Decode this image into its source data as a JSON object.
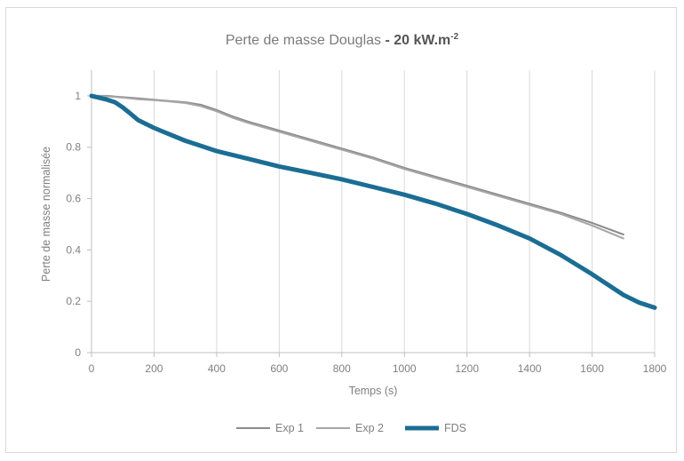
{
  "chart_data": {
    "type": "line",
    "title_main": "Perte de masse Douglas",
    "title_sep": " - ",
    "title_bold": "20 kW.m",
    "title_sup": "-2",
    "xlabel": "Temps (s)",
    "ylabel": "Perte de masse normalisée",
    "xlim": [
      0,
      1800
    ],
    "ylim": [
      0,
      1.1
    ],
    "xticks": [
      0,
      200,
      400,
      600,
      800,
      1000,
      1200,
      1400,
      1600,
      1800
    ],
    "yticks": [
      0,
      0.2,
      0.4,
      0.6,
      0.8,
      1
    ],
    "ytick_labels": [
      "0",
      "0.2",
      "0.4",
      "0.6",
      "0.8",
      "1"
    ],
    "grid": "vertical",
    "legend_position": "bottom",
    "series": [
      {
        "name": "Exp 1",
        "color": "#8c8c8c",
        "x": [
          0,
          50,
          100,
          150,
          200,
          250,
          300,
          350,
          400,
          450,
          500,
          600,
          700,
          800,
          900,
          1000,
          1100,
          1200,
          1300,
          1400,
          1500,
          1600,
          1700
        ],
        "y": [
          1.0,
          1.0,
          0.995,
          0.99,
          0.985,
          0.98,
          0.975,
          0.965,
          0.945,
          0.92,
          0.9,
          0.865,
          0.83,
          0.795,
          0.76,
          0.72,
          0.685,
          0.65,
          0.615,
          0.58,
          0.545,
          0.505,
          0.46
        ]
      },
      {
        "name": "Exp 2",
        "color": "#a6a6a6",
        "x": [
          0,
          50,
          100,
          150,
          200,
          250,
          300,
          350,
          400,
          450,
          500,
          600,
          700,
          800,
          900,
          1000,
          1100,
          1200,
          1300,
          1400,
          1500,
          1600,
          1700
        ],
        "y": [
          1.0,
          0.998,
          0.993,
          0.987,
          0.983,
          0.978,
          0.972,
          0.96,
          0.94,
          0.915,
          0.895,
          0.86,
          0.825,
          0.79,
          0.755,
          0.715,
          0.68,
          0.645,
          0.61,
          0.575,
          0.54,
          0.495,
          0.445
        ]
      },
      {
        "name": "FDS",
        "color": "#1b6d94",
        "x": [
          0,
          50,
          75,
          100,
          125,
          150,
          200,
          250,
          300,
          350,
          400,
          500,
          600,
          700,
          800,
          900,
          1000,
          1100,
          1200,
          1300,
          1400,
          1500,
          1600,
          1700,
          1750,
          1800
        ],
        "y": [
          1.0,
          0.985,
          0.975,
          0.955,
          0.93,
          0.905,
          0.875,
          0.85,
          0.825,
          0.805,
          0.785,
          0.755,
          0.725,
          0.7,
          0.675,
          0.645,
          0.615,
          0.58,
          0.54,
          0.495,
          0.445,
          0.38,
          0.305,
          0.225,
          0.195,
          0.175
        ]
      }
    ]
  }
}
